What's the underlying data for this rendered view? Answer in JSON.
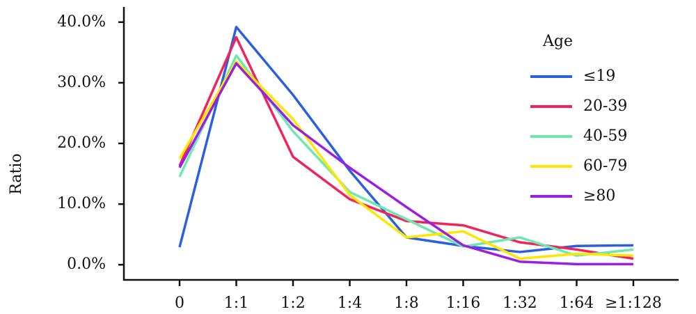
{
  "chart_data": {
    "type": "line",
    "y_label": "Ratio",
    "legend_title": "Age",
    "categories": [
      "0",
      "1:1",
      "1:2",
      "1:4",
      "1:8",
      "1:16",
      "1:32",
      "1:64",
      "≥1:128"
    ],
    "series": [
      {
        "name": "≤19",
        "color": "#2a5fe0",
        "values": [
          2.9,
          39.2,
          28.0,
          15.5,
          4.5,
          3.1,
          2.1,
          3.1,
          3.2
        ]
      },
      {
        "name": "20-39",
        "color": "#f0245a",
        "values": [
          16.3,
          37.5,
          17.8,
          10.8,
          7.2,
          6.5,
          3.7,
          2.5,
          1.0
        ]
      },
      {
        "name": "40-59",
        "color": "#6ee8b0",
        "values": [
          14.5,
          34.5,
          22.0,
          12.0,
          7.5,
          3.0,
          4.5,
          1.5,
          2.5
        ]
      },
      {
        "name": "60-79",
        "color": "#ffe600",
        "values": [
          17.5,
          33.5,
          24.0,
          11.5,
          4.5,
          5.5,
          1.0,
          1.8,
          1.5
        ]
      },
      {
        "name": "≥80",
        "color": "#9b1fe0",
        "values": [
          16.0,
          33.2,
          23.0,
          16.0,
          9.5,
          3.2,
          0.5,
          0.1,
          0.1
        ]
      }
    ],
    "ylim": [
      -2.5,
      42.5
    ],
    "yticks": [
      {
        "value": 0,
        "label": "0.0%"
      },
      {
        "value": 10,
        "label": "10.0%"
      },
      {
        "value": 20,
        "label": "20.0%"
      },
      {
        "value": 30,
        "label": "30.0%"
      },
      {
        "value": 40,
        "label": "40.0%"
      }
    ],
    "legend_position": "upper right"
  }
}
